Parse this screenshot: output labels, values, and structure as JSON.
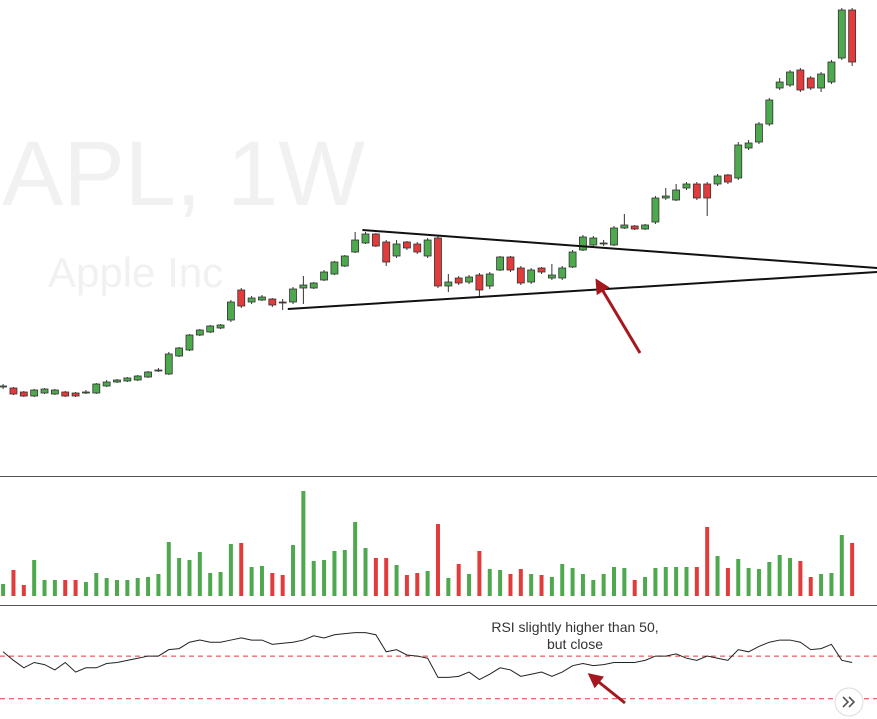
{
  "chart_data": [
    {
      "type": "candlestick",
      "title": "APL, 1W",
      "subtitle": "Apple Inc",
      "xlim": [
        -0.3,
        84.4
      ],
      "ylim": [
        5,
        480
      ],
      "up_color": "#4ea84e",
      "down_color": "#e23b3b",
      "open": [
        93,
        92,
        88,
        84,
        87,
        86,
        88,
        87,
        88,
        87,
        94,
        98,
        99,
        100,
        103,
        110,
        106,
        124,
        130,
        145,
        148,
        152,
        160,
        190,
        178,
        180,
        181,
        178,
        178,
        192,
        192,
        200,
        206,
        214,
        228,
        237,
        246,
        238,
        224,
        238,
        236,
        224,
        242,
        194,
        202,
        198,
        205,
        194,
        210,
        223,
        212,
        198,
        212,
        202,
        202,
        213,
        230,
        235,
        236,
        235,
        252,
        254,
        251,
        258,
        282,
        280,
        292,
        296,
        296,
        296,
        305,
        302,
        332,
        338,
        356,
        392,
        395,
        410,
        402,
        392,
        398,
        422,
        470
      ],
      "high": [
        96,
        93,
        89,
        91,
        92,
        91,
        89,
        88,
        90,
        97,
        100,
        101,
        103,
        105,
        109,
        112,
        128,
        133,
        146,
        151,
        155,
        156,
        180,
        192,
        184,
        185,
        182,
        181,
        193,
        204,
        198,
        210,
        219,
        225,
        248,
        248,
        247,
        240,
        240,
        239,
        238,
        242,
        244,
        206,
        204,
        205,
        207,
        208,
        224,
        224,
        214,
        212,
        213,
        216,
        214,
        230,
        245,
        244,
        240,
        254,
        266,
        255,
        256,
        284,
        292,
        296,
        298,
        298,
        298,
        306,
        306,
        338,
        340,
        358,
        382,
        402,
        410,
        412,
        404,
        408,
        420,
        472,
        472
      ],
      "low": [
        91,
        85,
        83,
        83,
        86,
        85,
        83,
        83,
        86,
        86,
        93,
        97,
        98,
        99,
        102,
        108,
        105,
        123,
        129,
        144,
        147,
        151,
        158,
        172,
        176,
        179,
        173,
        170,
        176,
        176,
        191,
        199,
        205,
        213,
        227,
        236,
        233,
        214,
        222,
        230,
        226,
        222,
        192,
        188,
        195,
        196,
        184,
        191,
        209,
        208,
        195,
        196,
        206,
        200,
        200,
        212,
        229,
        234,
        234,
        234,
        251,
        250,
        250,
        256,
        280,
        279,
        290,
        280,
        264,
        294,
        296,
        300,
        330,
        336,
        354,
        390,
        393,
        388,
        390,
        388,
        396,
        420,
        414
      ],
      "close": [
        94,
        86,
        84,
        90,
        91,
        90,
        84,
        84,
        88,
        96,
        98,
        100,
        102,
        104,
        108,
        110,
        126,
        132,
        145,
        150,
        154,
        155,
        178,
        174,
        182,
        183,
        175,
        177,
        191,
        195,
        197,
        208,
        218,
        224,
        240,
        246,
        234,
        218,
        236,
        232,
        228,
        240,
        194,
        198,
        197,
        203,
        190,
        206,
        223,
        210,
        197,
        210,
        208,
        205,
        212,
        228,
        243,
        242,
        237,
        252,
        255,
        251,
        255,
        282,
        284,
        290,
        296,
        282,
        282,
        304,
        298,
        335,
        337,
        356,
        380,
        398,
        408,
        390,
        392,
        406,
        418,
        470,
        418
      ],
      "trendlines": [
        {
          "x": [
            34.7,
            84.4
          ],
          "y": [
            250,
            212
          ]
        },
        {
          "x": [
            27.5,
            84.4
          ],
          "y": [
            171,
            208
          ]
        }
      ]
    },
    {
      "type": "bar",
      "xlim": [
        -0.3,
        84.4
      ],
      "ylim": [
        -9,
        119
      ],
      "values": [
        12,
        26,
        11,
        36,
        16,
        16,
        16,
        16,
        14,
        23,
        18,
        16,
        16,
        18,
        19,
        22,
        54,
        38,
        36,
        44,
        23,
        24,
        52,
        53,
        29,
        30,
        23,
        21,
        51,
        105,
        35,
        36,
        45,
        46,
        74,
        48,
        38,
        38,
        31,
        21,
        23,
        25,
        72,
        18,
        32,
        22,
        45,
        27,
        26,
        22,
        27,
        22,
        21,
        19,
        32,
        28,
        22,
        16,
        22,
        29,
        28,
        16,
        19,
        28,
        29,
        29,
        29,
        29,
        69,
        40,
        28,
        37,
        28,
        27,
        34,
        41,
        38,
        35,
        19,
        22,
        23,
        61,
        53
      ]
    },
    {
      "type": "line",
      "xlim": [
        -0.3,
        84.4
      ],
      "ylim": [
        11,
        116
      ],
      "color": "#222222",
      "levels": [
        70,
        30
      ],
      "level_color": "#e03a3a",
      "values": [
        74,
        66,
        59,
        64,
        62,
        57,
        64,
        55,
        59,
        59,
        63,
        64,
        66,
        68,
        70,
        70,
        76,
        77,
        83,
        85,
        83,
        83,
        85,
        87,
        85,
        85,
        81,
        82,
        83,
        85,
        89,
        87,
        90,
        91,
        92,
        92,
        90,
        74,
        76,
        71,
        70,
        68,
        50,
        50,
        51,
        55,
        48,
        53,
        59,
        57,
        51,
        53,
        55,
        51,
        55,
        61,
        63,
        61,
        62,
        64,
        64,
        64,
        66,
        70,
        70,
        72,
        68,
        66,
        70,
        68,
        66,
        76,
        74,
        79,
        83,
        85,
        85,
        83,
        76,
        77,
        81,
        66,
        64
      ],
      "annotation": [
        "RSI slightly higher than 50,",
        "but close"
      ]
    }
  ]
}
